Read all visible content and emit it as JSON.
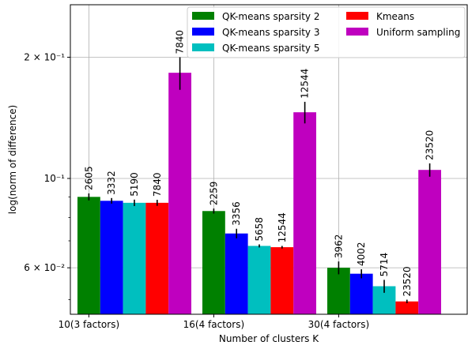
{
  "chart_data": {
    "type": "bar",
    "yscale": "log",
    "ylim": [
      0.046,
      0.27
    ],
    "grid": true,
    "legend_position": "top-right",
    "xlabel": "Number of clusters K",
    "ylabel": "log(norm of difference)",
    "categories": [
      "10(3 factors)",
      "16(4 factors)",
      "30(4 factors)"
    ],
    "yticks": [
      {
        "value": 0.06,
        "label": "6 × 10⁻²"
      },
      {
        "value": 0.1,
        "label": "10⁻¹"
      },
      {
        "value": 0.2,
        "label": "2 × 10⁻¹"
      }
    ],
    "series": [
      {
        "name": "QK-means sparsity 2",
        "color": "#008000",
        "values": [
          0.09,
          0.083,
          0.06
        ],
        "errors": [
          0.0018,
          0.0012,
          0.0022
        ],
        "labels": [
          "2605",
          "2259",
          "3962"
        ]
      },
      {
        "name": "QK-means sparsity 3",
        "color": "#0000ff",
        "values": [
          0.088,
          0.073,
          0.058
        ],
        "errors": [
          0.0014,
          0.002,
          0.0015
        ],
        "labels": [
          "3332",
          "3356",
          "4002"
        ]
      },
      {
        "name": "QK-means sparsity 5",
        "color": "#00bfbf",
        "values": [
          0.087,
          0.068,
          0.054
        ],
        "errors": [
          0.0016,
          0.0006,
          0.002
        ],
        "labels": [
          "5190",
          "5658",
          "5714"
        ]
      },
      {
        "name": "Kmeans",
        "color": "#ff0000",
        "values": [
          0.087,
          0.0675,
          0.0495
        ],
        "errors": [
          0.0015,
          0.0005,
          0.0005
        ],
        "labels": [
          "7840",
          "12544",
          "23520"
        ]
      },
      {
        "name": "Uniform sampling",
        "color": "#bf00bf",
        "values": [
          0.183,
          0.146,
          0.105
        ],
        "errors": [
          0.017,
          0.009,
          0.004
        ],
        "labels": [
          "7840",
          "12544",
          "23520"
        ]
      }
    ]
  }
}
